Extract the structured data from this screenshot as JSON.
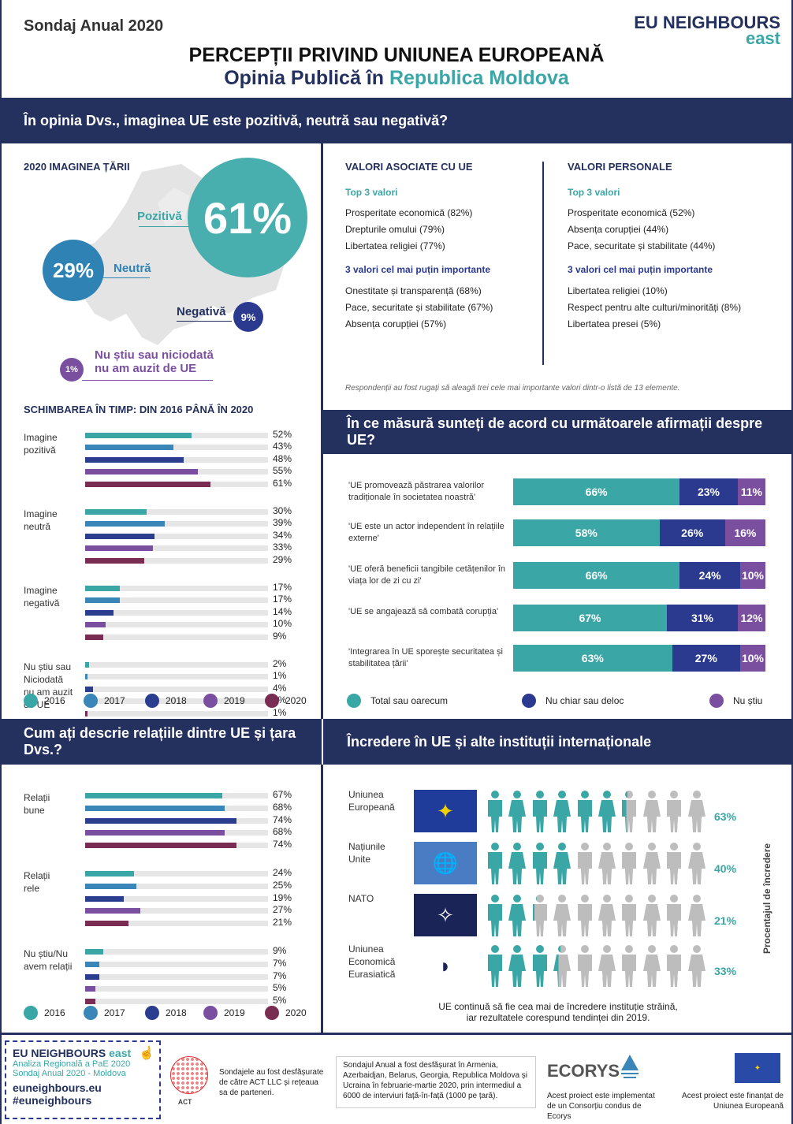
{
  "header": {
    "survey": "Sondaj Anual 2020",
    "brand_top": "EU NEIGHBOURS",
    "brand_bottom": "east",
    "title_line1": "PERCEPȚII PRIVIND UNIUNEA EUROPEANĂ",
    "title_line2_a": "Opinia Publică în ",
    "title_line2_b": "Republica Moldova"
  },
  "q1": {
    "band": "În opinia Dvs., imaginea  UE este pozitivă, neutră sau negativă?",
    "map_title": "2020 IMAGINEA ȚĂRII",
    "pos_label": "Pozitivă",
    "pos_val": "61%",
    "neu_label": "Neutră",
    "neu_val": "29%",
    "neg_label": "Negativă",
    "neg_val": "9%",
    "dk_label1": "Nu știu sau niciodată",
    "dk_label2": "nu am auzit de UE",
    "dk_val": "1%"
  },
  "values": {
    "eu_title": "VALORI ASOCIATE CU UE",
    "personal_title": "VALORI PERSONALE",
    "top3": "Top 3 valori",
    "least3": "3 valori cel mai puțin importante",
    "eu_top": [
      "Prosperitate economică (82%)",
      "Drepturile omului (79%)",
      "Libertatea religiei (77%)"
    ],
    "eu_least": [
      "Onestitate și transparență (68%)",
      "Pace, securitate și stabilitate (67%)",
      "Absența corupției (57%)"
    ],
    "pers_top": [
      "Prosperitate economică (52%)",
      "Absența corupției (44%)",
      "Pace, securitate și stabilitate (44%)"
    ],
    "pers_least": [
      "Libertatea religiei (10%)",
      "Respect pentru alte culturi/minorități (8%)",
      "Libertatea presei (5%)"
    ],
    "note": "Respondenții au fost rugați să aleagă  trei cele mai importante valori dintr-o listă de 13 elemente."
  },
  "change": {
    "title": "SCHIMBAREA ÎN TIMP: DIN 2016 PÂNĂ ÎN 2020",
    "groups": [
      {
        "label": "Imagine\npozitivă",
        "values": [
          52,
          43,
          48,
          55,
          61
        ],
        "labels": [
          "52%",
          "43%",
          "48%",
          "55%",
          "61%"
        ]
      },
      {
        "label": "Imagine\nneutră",
        "values": [
          30,
          39,
          34,
          33,
          29
        ],
        "labels": [
          "30%",
          "39%",
          "34%",
          "33%",
          "29%"
        ]
      },
      {
        "label": "Imagine\nnegativă",
        "values": [
          17,
          17,
          14,
          10,
          9
        ],
        "labels": [
          "17%",
          "17%",
          "14%",
          "10%",
          "9%"
        ]
      },
      {
        "label": "Nu știu sau\nNiciodată\nnu am auzit\nde UE",
        "values": [
          2,
          1,
          4,
          2,
          1
        ],
        "labels": [
          "2%",
          "1%",
          "4%",
          "2%",
          "1%"
        ]
      }
    ]
  },
  "years": [
    "2016",
    "2017",
    "2018",
    "2019",
    "2020"
  ],
  "year_colors": [
    "#3aa6a6",
    "#3a86b8",
    "#2b3d8f",
    "#7b4fa0",
    "#7a2d52"
  ],
  "agree": {
    "band": "În ce măsură sunteți de acord cu următoarele afirmații despre UE?",
    "rows": [
      {
        "text": "'UE promovează păstrarea valorilor tradiționale în societatea noastră'",
        "a": 66,
        "b": 23,
        "c": 11,
        "al": "66%",
        "bl": "23%",
        "cl": "11%"
      },
      {
        "text": "'UE este un actor independent în relațiile externe'",
        "a": 58,
        "b": 26,
        "c": 16,
        "al": "58%",
        "bl": "26%",
        "cl": "16%"
      },
      {
        "text": "'UE oferă beneficii tangibile cetățenilor în viața lor de zi cu zi'",
        "a": 66,
        "b": 24,
        "c": 10,
        "al": "66%",
        "bl": "24%",
        "cl": "10%"
      },
      {
        "text": "'UE se angajează să combată corupția'",
        "a": 67,
        "b": 31,
        "c": 12,
        "al": "67%",
        "bl": "31%",
        "cl": "12%"
      },
      {
        "text": "'Integrarea în UE sporește securitatea și stabilitatea țării'",
        "a": 63,
        "b": 27,
        "c": 10,
        "al": "63%",
        "bl": "27%",
        "cl": "10%"
      }
    ],
    "legend": [
      "Total sau oarecum",
      "Nu chiar sau deloc",
      "Nu știu"
    ],
    "colors": [
      "#3aa6a6",
      "#2b3a8f",
      "#7b4fa0"
    ]
  },
  "relations": {
    "band": "Cum ați descrie relațiile dintre UE și țara Dvs.?",
    "groups": [
      {
        "label": "Relații\nbune",
        "values": [
          67,
          68,
          74,
          68,
          74
        ],
        "labels": [
          "67%",
          "68%",
          "74%",
          "68%",
          "74%"
        ]
      },
      {
        "label": "Relații\nrele",
        "values": [
          24,
          25,
          19,
          27,
          21
        ],
        "labels": [
          "24%",
          "25%",
          "19%",
          "27%",
          "21%"
        ]
      },
      {
        "label": "Nu știu/Nu\navem relații",
        "values": [
          9,
          7,
          7,
          5,
          5
        ],
        "labels": [
          "9%",
          "7%",
          "7%",
          "5%",
          "5%"
        ]
      }
    ]
  },
  "trust": {
    "band": "Încredere în UE și alte instituții internaționale",
    "axis": "Procentajul de încredere",
    "rows": [
      {
        "name": "Uniunea\nEuropeană",
        "value": 63,
        "label": "63%"
      },
      {
        "name": "Națiunile\nUnite",
        "value": 40,
        "label": "40%"
      },
      {
        "name": "NATO",
        "value": 21,
        "label": "21%"
      },
      {
        "name": "Uniunea\nEconomică\nEurasiatică",
        "value": 33,
        "label": "33%"
      }
    ],
    "note1": "UE continuă să fie cea mai de încredere instituție străină,",
    "note2": "iar rezultatele corespund tendinței din 2019."
  },
  "footer": {
    "brand1": "EU NEIGHBOURS",
    "brand2": "east",
    "line1": "Analiza Regională a PaE 2020",
    "line2": "Sondaj Anual 2020 - Moldova",
    "site": "euneighbours.eu",
    "tag": "#euneighbours",
    "act": "ᴀᴄᴛ",
    "act_text": "Sondajele au fost desfășurate de către ACT LLC și rețeaua sa de parteneri.",
    "survey_text": "Sondajul Anual a fost desfășurat în Armenia, Azerbaidjan, Belarus, Georgia, Republica Moldova și Ucraina în februarie-martie 2020, prin intermediul a 6000 de interviuri față-în-față (1000 pe țară).",
    "ecorys": "ECORYS",
    "ecorys_text": "Acest proiect este implementat de un Consorțiu condus de Ecorys",
    "eu_text": "Acest proiect este finanțat de Uniunea Europeană"
  }
}
